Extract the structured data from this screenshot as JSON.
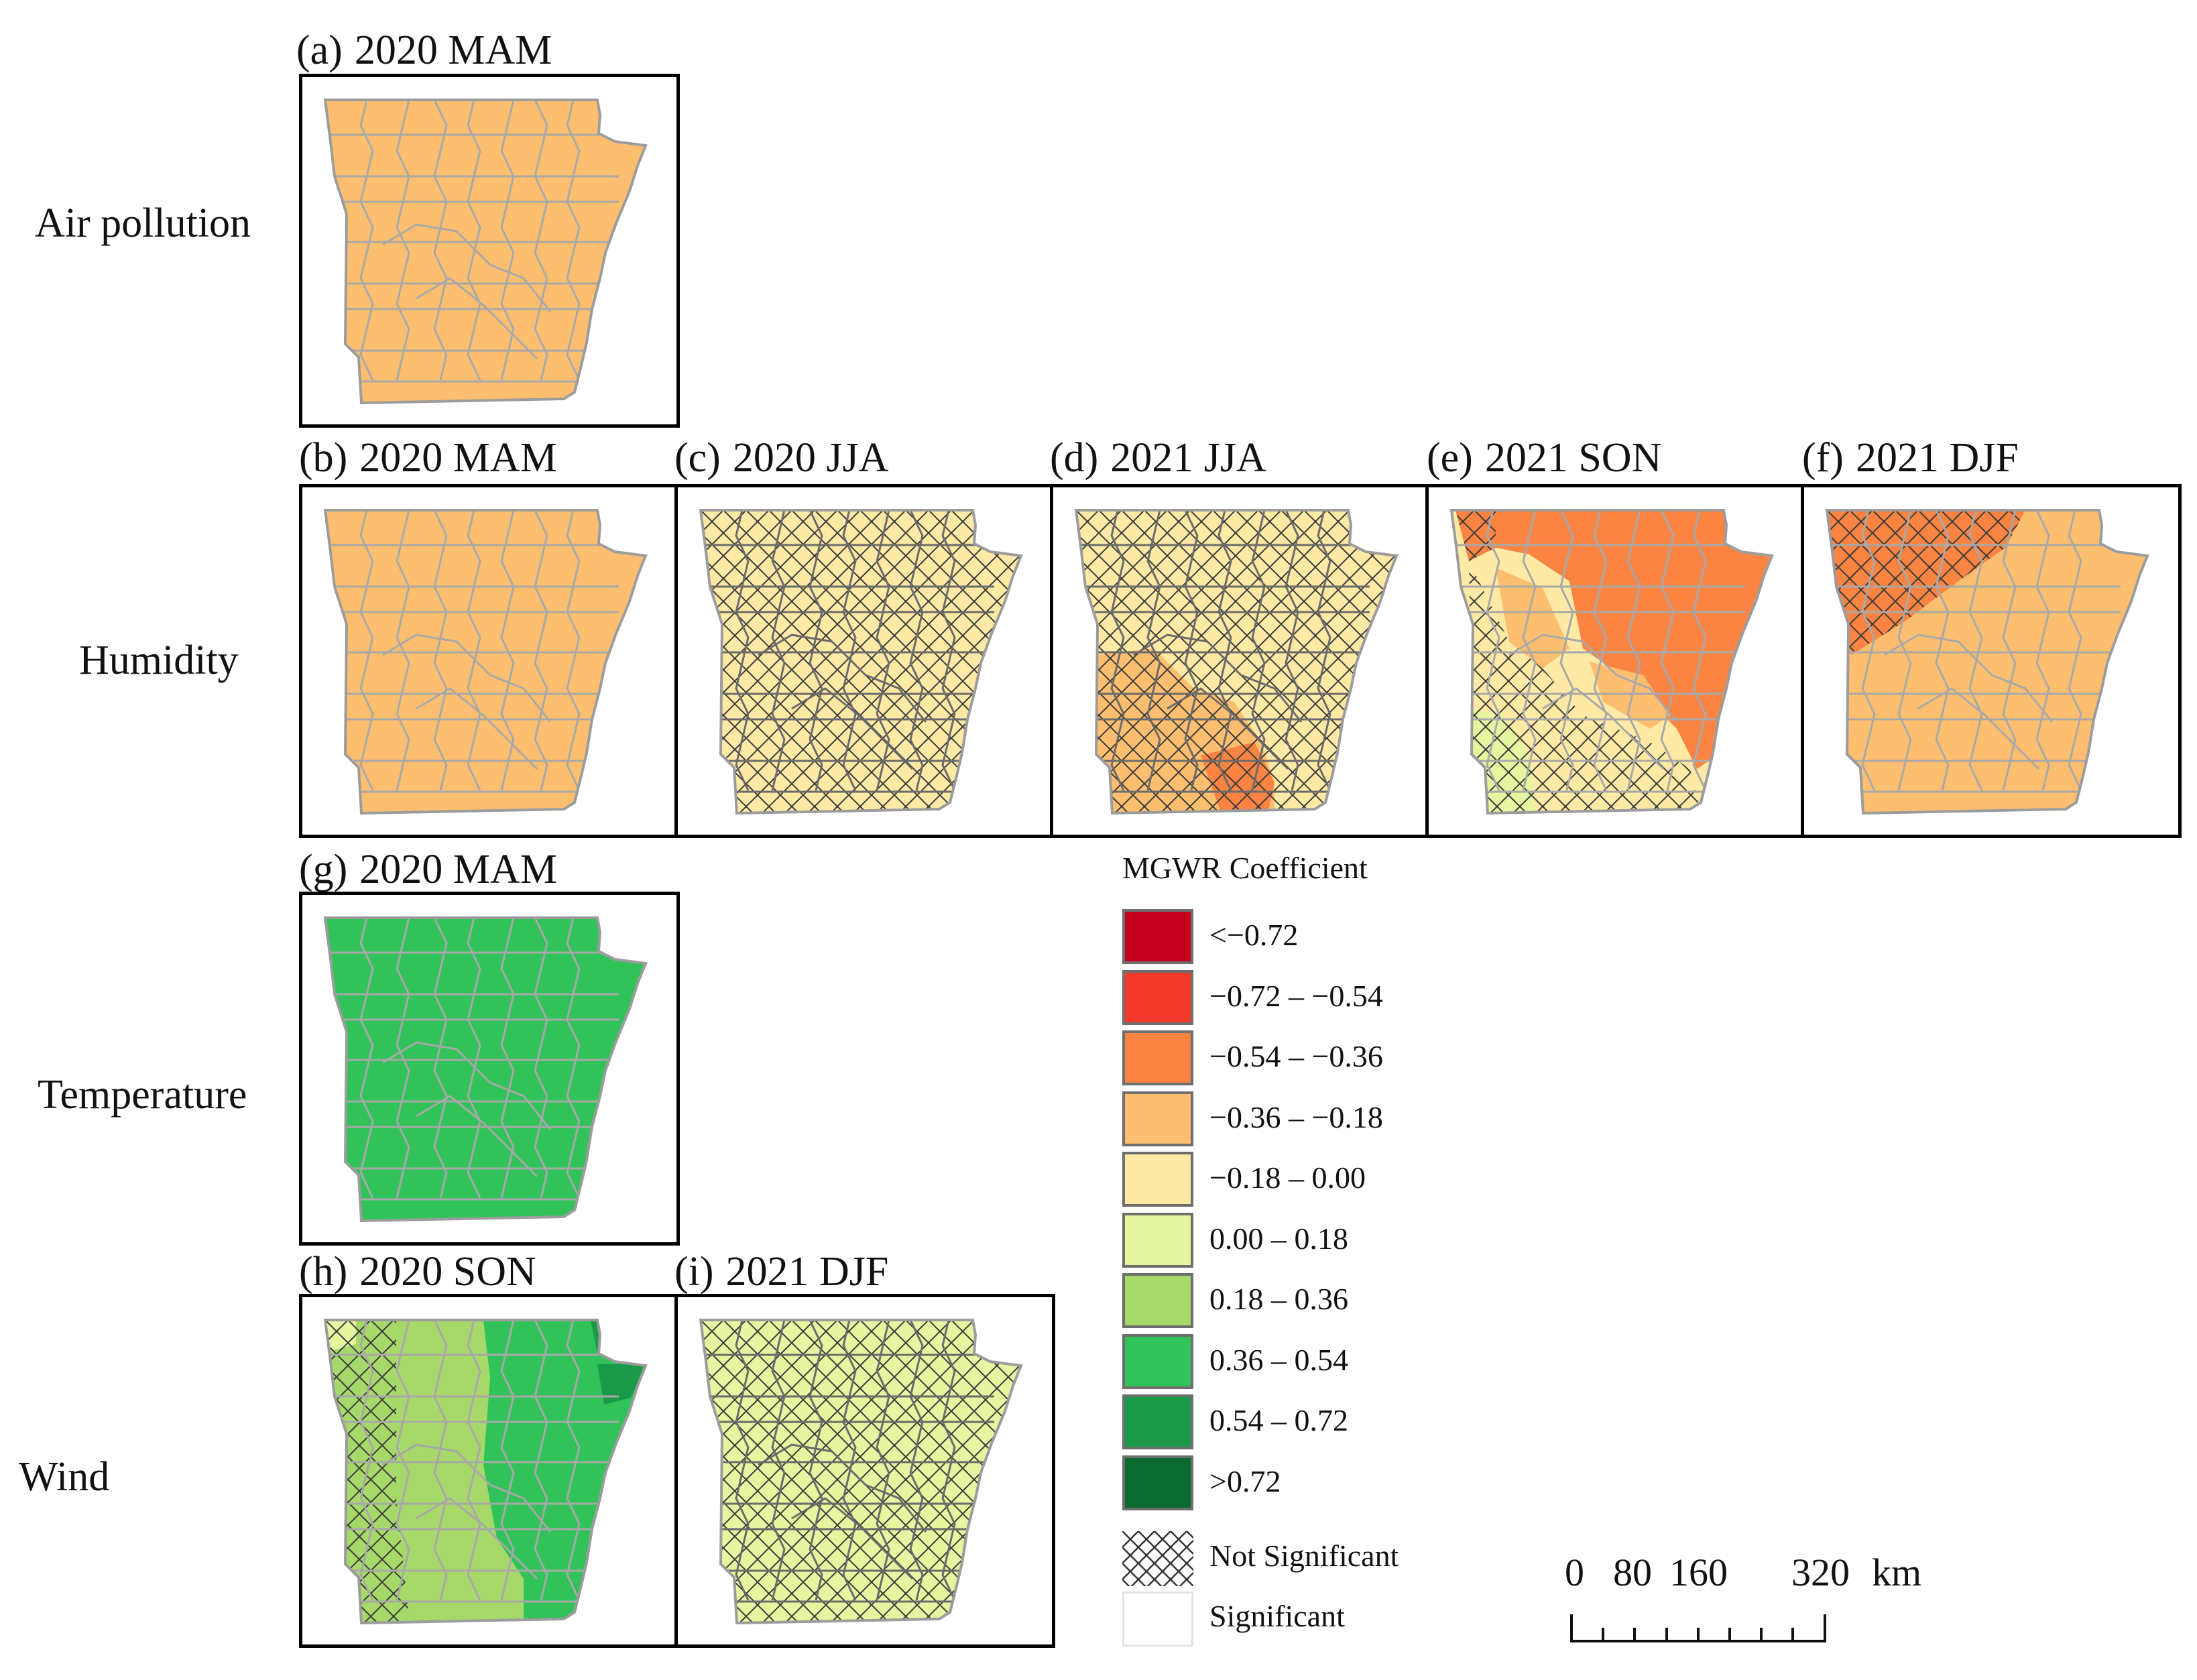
{
  "rows": [
    {
      "label": "Air pollution"
    },
    {
      "label": "Humidity"
    },
    {
      "label": "Temperature"
    },
    {
      "label": "Wind"
    }
  ],
  "panels": [
    {
      "letter": "(a)",
      "title": "2020 MAM",
      "fill": "#fdbf6f",
      "variant": "uniform",
      "hatch": "none"
    },
    {
      "letter": "(b)",
      "title": "2020 MAM",
      "fill": "#fdbf6f",
      "variant": "uniform",
      "hatch": "none"
    },
    {
      "letter": "(c)",
      "title": "2020 JJA",
      "fill": "#fee9a5",
      "variant": "uniform",
      "hatch": "all"
    },
    {
      "letter": "(d)",
      "title": "2021 JJA",
      "fill": "#fee9a5",
      "variant": "d",
      "hatch": "all"
    },
    {
      "letter": "(e)",
      "title": "2021 SON",
      "fill": "#fee9a5",
      "variant": "e",
      "hatch": "partial"
    },
    {
      "letter": "(f)",
      "title": "2021 DJF",
      "fill": "#fdbf6f",
      "variant": "f",
      "hatch": "partial"
    },
    {
      "letter": "(g)",
      "title": "2020 MAM",
      "fill": "#31c35a",
      "variant": "uniform",
      "hatch": "none"
    },
    {
      "letter": "(h)",
      "title": "2020 SON",
      "fill": "#a6d96a",
      "variant": "h",
      "hatch": "partial"
    },
    {
      "letter": "(i)",
      "title": "2021 DJF",
      "fill": "#e6f5a0",
      "variant": "uniform",
      "hatch": "all"
    }
  ],
  "legend": {
    "title": "MGWR Coefficient",
    "classes": [
      {
        "label": "<−0.72",
        "color": "#c5001f"
      },
      {
        "label": "−0.72 – −0.54",
        "color": "#f33a2a"
      },
      {
        "label": "−0.54 – −0.36",
        "color": "#fb8442"
      },
      {
        "label": "−0.36 – −0.18",
        "color": "#fdbf6f"
      },
      {
        "label": "−0.18 – 0.00",
        "color": "#fee9a5"
      },
      {
        "label": "0.00 – 0.18",
        "color": "#e6f5a0"
      },
      {
        "label": "0.18 – 0.36",
        "color": "#a6d96a"
      },
      {
        "label": "0.36 – 0.54",
        "color": "#31c35a"
      },
      {
        "label": "0.54 – 0.72",
        "color": "#1a9a48"
      },
      {
        "label": ">0.72",
        "color": "#0a6a30"
      }
    ],
    "not_significant": "Not Significant",
    "significant": "Significant"
  },
  "scalebar": {
    "ticks": [
      "0",
      "80",
      "160",
      "320"
    ],
    "unit": "km"
  }
}
